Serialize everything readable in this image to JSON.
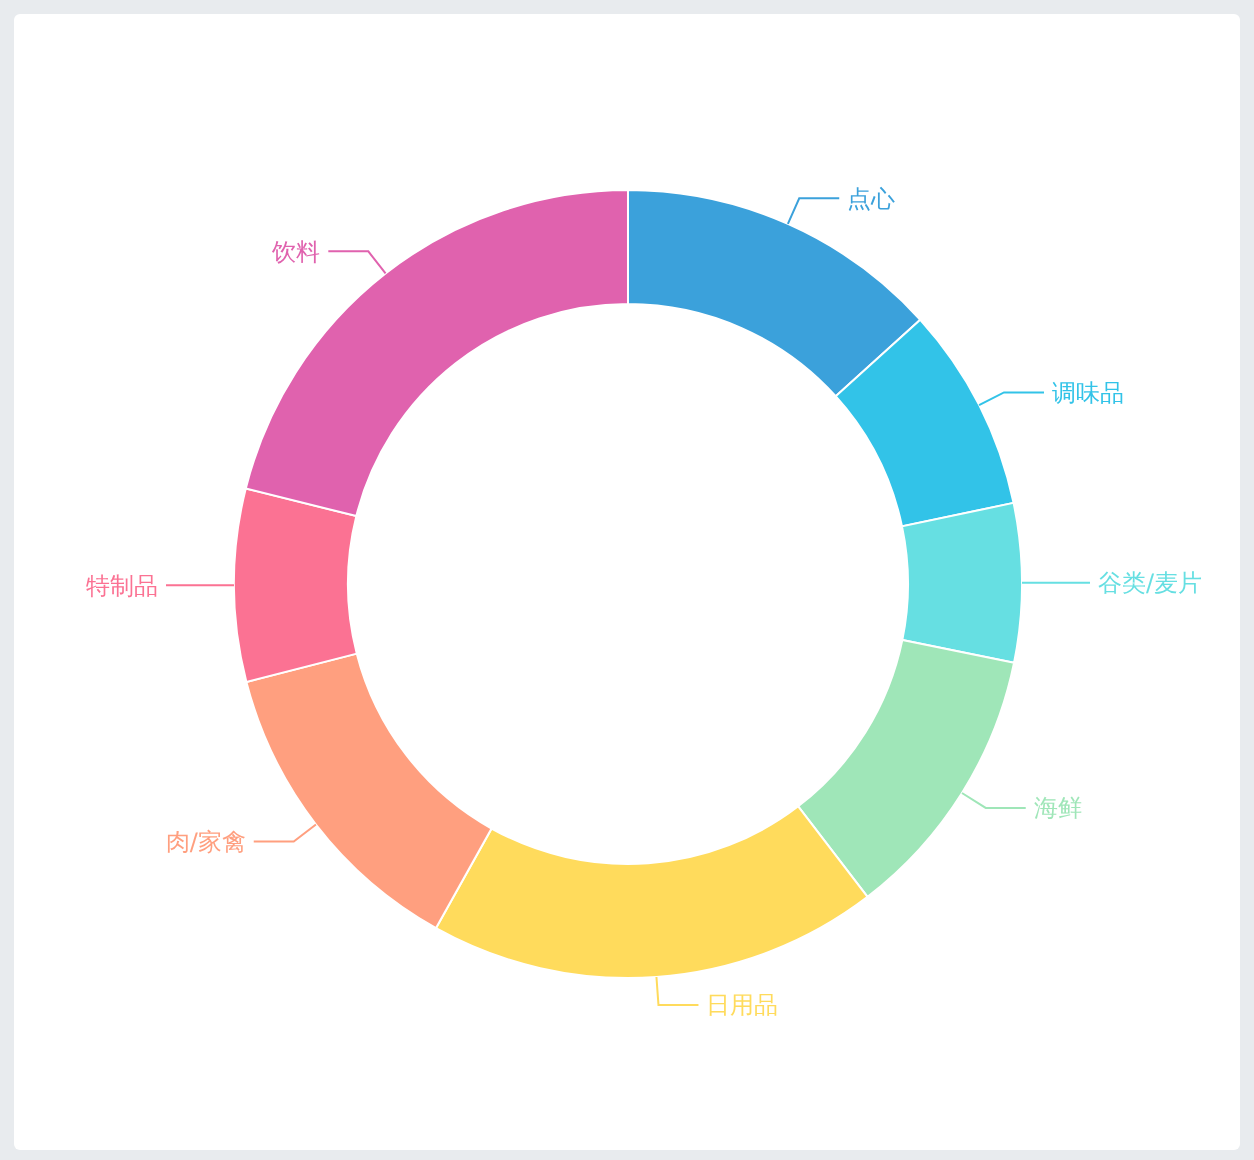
{
  "chart_data": {
    "type": "donut",
    "categories": [
      "点心",
      "调味品",
      "谷类/麦片",
      "海鲜",
      "日用品",
      "肉/家禽",
      "特制品",
      "饮料"
    ],
    "values": [
      13.3,
      8.4,
      6.5,
      11.4,
      18.5,
      12.9,
      7.9,
      21.1
    ],
    "colors": [
      "#3ba1db",
      "#32c3e8",
      "#66dfe2",
      "#9fe6b8",
      "#ffdb5c",
      "#ff9f7f",
      "#fb7293",
      "#e062ae"
    ]
  }
}
